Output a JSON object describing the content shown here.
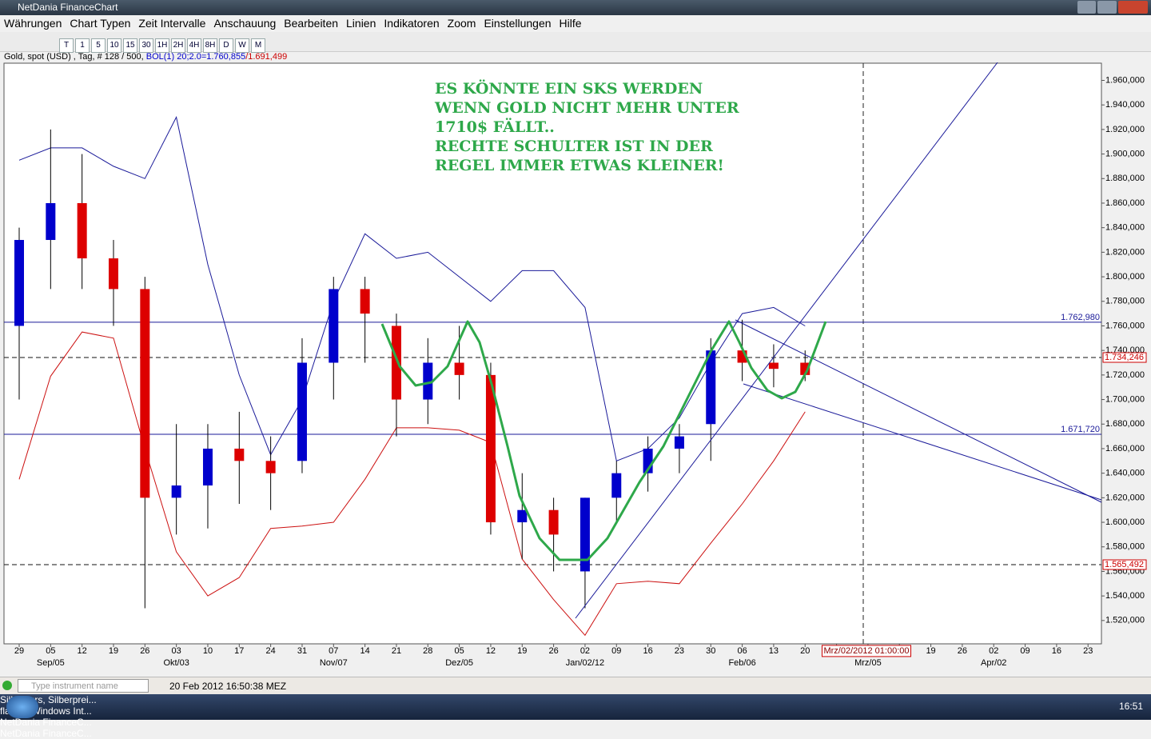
{
  "window": {
    "title": "NetDania FinanceChart"
  },
  "menu": [
    "Währungen",
    "Chart Typen",
    "Zeit Intervalle",
    "Anschauung",
    "Bearbeiten",
    "Linien",
    "Indikatoren",
    "Zoom",
    "Einstellungen",
    "Hilfe"
  ],
  "toolbar": [
    "T",
    "1",
    "5",
    "10",
    "15",
    "30",
    "1H",
    "2H",
    "4H",
    "8H",
    "D",
    "W",
    "M"
  ],
  "info": {
    "instrument": "Gold, spot (USD) , Tag, # 128 / 500, ",
    "bol_upper": "BOL(1) 20;2.0=1.760,855",
    "bol_lower": "/1.691,499"
  },
  "chart_data": {
    "type": "candlestick",
    "annotation": [
      "ES KÖNNTE EIN SKS WERDEN",
      "WENN GOLD NICHT MEHR UNTER",
      "1710$ FÄLLT..",
      "RECHTE SCHULTER IST IN DER",
      "REGEL IMMER ETWAS KLEINER!"
    ],
    "categories": [
      "29",
      "05",
      "12",
      "19",
      "26",
      "03",
      "10",
      "17",
      "24",
      "31",
      "07",
      "14",
      "21",
      "28",
      "05",
      "12",
      "19",
      "26",
      "02",
      "09",
      "16",
      "23",
      "30",
      "06",
      "13",
      "20",
      null,
      null,
      null,
      "19",
      "26",
      "02",
      "09",
      "16",
      "23"
    ],
    "month_labels": [
      null,
      "Sep/05",
      null,
      null,
      null,
      "Okt/03",
      null,
      null,
      null,
      null,
      "Nov/07",
      null,
      null,
      null,
      "Dez/05",
      null,
      null,
      null,
      "Jan/02/12",
      null,
      null,
      null,
      null,
      "Feb/06",
      null,
      null,
      null,
      "Mrz/05",
      null,
      null,
      null,
      "Apr/02",
      null,
      null,
      null
    ],
    "cursor_label": "Mrz/02/2012 01:00:00",
    "ohlc": [
      [
        1760,
        1840,
        1700,
        1830
      ],
      [
        1830,
        1920,
        1790,
        1860
      ],
      [
        1860,
        1900,
        1790,
        1815
      ],
      [
        1815,
        1830,
        1760,
        1790
      ],
      [
        1790,
        1800,
        1530,
        1620
      ],
      [
        1620,
        1680,
        1590,
        1630
      ],
      [
        1630,
        1680,
        1595,
        1660
      ],
      [
        1660,
        1690,
        1615,
        1650
      ],
      [
        1650,
        1670,
        1610,
        1640
      ],
      [
        1650,
        1750,
        1640,
        1730
      ],
      [
        1730,
        1800,
        1700,
        1790
      ],
      [
        1790,
        1800,
        1730,
        1770
      ],
      [
        1760,
        1770,
        1670,
        1700
      ],
      [
        1700,
        1750,
        1680,
        1730
      ],
      [
        1730,
        1760,
        1700,
        1720
      ],
      [
        1720,
        1730,
        1590,
        1600
      ],
      [
        1600,
        1640,
        1570,
        1610
      ],
      [
        1610,
        1620,
        1560,
        1590
      ],
      [
        1560,
        1620,
        1530,
        1620
      ],
      [
        1620,
        1650,
        1600,
        1640
      ],
      [
        1640,
        1670,
        1625,
        1660
      ],
      [
        1660,
        1680,
        1640,
        1670
      ],
      [
        1680,
        1750,
        1650,
        1740
      ],
      [
        1740,
        1765,
        1715,
        1730
      ],
      [
        1730,
        1745,
        1710,
        1725
      ],
      [
        1730,
        1740,
        1715,
        1720
      ],
      null,
      null,
      null,
      null,
      null,
      null,
      null,
      null,
      null
    ],
    "up_color": "#0000cc",
    "down_color": "#dd0000",
    "upper_band": {
      "color": "#1a1a99",
      "values": [
        1895,
        1905,
        1905,
        1890,
        1880,
        1930,
        1810,
        1720,
        1655,
        1700,
        1780,
        1835,
        1815,
        1820,
        1800,
        1780,
        1805,
        1805,
        1775,
        1650,
        1660,
        1685,
        1730,
        1770,
        1775,
        1760,
        null,
        null,
        null,
        null,
        null,
        null,
        null,
        null,
        null
      ]
    },
    "lower_band": {
      "color": "#cc1111",
      "values": [
        1635,
        1719,
        1755,
        1750,
        1660,
        1576,
        1540,
        1555,
        1595,
        1597,
        1600,
        1635,
        1677,
        1677,
        1675,
        1665,
        1570,
        1537,
        1508,
        1550,
        1552,
        1550,
        1583,
        1615,
        1650,
        1690,
        null,
        null,
        null,
        null,
        null,
        null,
        null,
        null,
        null
      ]
    },
    "ylim": [
      1501,
      1974
    ],
    "yticks": [
      {
        "value": 1520,
        "label": "1.520,000"
      },
      {
        "value": 1540,
        "label": "1.540,000"
      },
      {
        "value": 1560,
        "label": "1.560,000"
      },
      {
        "value": 1580,
        "label": "1.580,000"
      },
      {
        "value": 1600,
        "label": "1.600,000"
      },
      {
        "value": 1620,
        "label": "1.620,000"
      },
      {
        "value": 1640,
        "label": "1.640,000"
      },
      {
        "value": 1660,
        "label": "1.660,000"
      },
      {
        "value": 1680,
        "label": "1.680,000"
      },
      {
        "value": 1700,
        "label": "1.700,000"
      },
      {
        "value": 1720,
        "label": "1.720,000"
      },
      {
        "value": 1740,
        "label": "1.740,000"
      },
      {
        "value": 1760,
        "label": "1.760,000"
      },
      {
        "value": 1780,
        "label": "1.780,000"
      },
      {
        "value": 1800,
        "label": "1.800,000"
      },
      {
        "value": 1820,
        "label": "1.820,000"
      },
      {
        "value": 1840,
        "label": "1.840,000"
      },
      {
        "value": 1860,
        "label": "1.860,000"
      },
      {
        "value": 1880,
        "label": "1.880,000"
      },
      {
        "value": 1900,
        "label": "1.900,000"
      },
      {
        "value": 1920,
        "label": "1.920,000"
      },
      {
        "value": 1940,
        "label": "1.940,000"
      },
      {
        "value": 1960,
        "label": "1.960,000"
      }
    ],
    "levels": [
      {
        "value": 1762.98,
        "label": "1.762,980",
        "style": "solid",
        "color": "#1a1a99"
      },
      {
        "value": 1671.72,
        "label": "1.671,720",
        "style": "solid",
        "color": "#1a1a99"
      },
      {
        "value": 1734.246,
        "label": "1.734,246",
        "style": "dashed",
        "color": "#cc0000"
      },
      {
        "value": 1565.492,
        "label": "1.565,492",
        "style": "dashed",
        "color": "#cc0000"
      }
    ]
  },
  "status": {
    "search_placeholder": "Type instrument name",
    "time": "20 Feb 2012 16:50:38 MEZ"
  },
  "taskbar": {
    "items": [
      "Silberkurs, Silberprei...",
      "flatex - Windows Int...",
      "NetDania FinanceC...",
      "NetDania FinanceC..."
    ],
    "clock": "16:51"
  }
}
